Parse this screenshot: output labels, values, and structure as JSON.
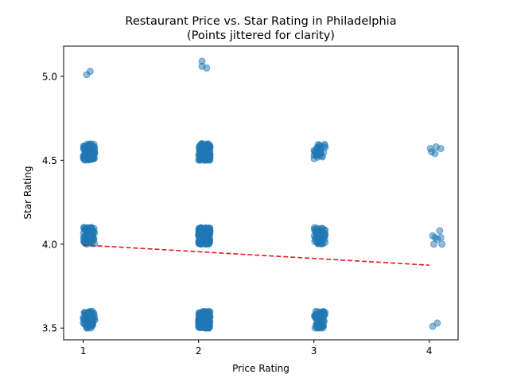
{
  "chart_data": {
    "type": "scatter",
    "title": "Restaurant Price vs. Star Rating in Philadelphia",
    "subtitle": "(Points jittered for clarity)",
    "xlabel": "Price Rating",
    "ylabel": "Star Rating",
    "xlim": [
      0.83,
      4.25
    ],
    "ylim": [
      3.43,
      5.18
    ],
    "xticks": [
      1,
      2,
      3,
      4
    ],
    "xtick_labels": [
      "1",
      "2",
      "3",
      "4"
    ],
    "yticks": [
      3.5,
      4.0,
      4.5,
      5.0
    ],
    "ytick_labels": [
      "3.5",
      "4.0",
      "4.5",
      "5.0"
    ],
    "grid": false,
    "point_color": "#1f77b4",
    "trend_color": "#e31a1c",
    "clusters": [
      {
        "price": 1,
        "stars": 3.5,
        "count": 80
      },
      {
        "price": 1,
        "stars": 4.0,
        "count": 80
      },
      {
        "price": 1,
        "stars": 4.5,
        "count": 80
      },
      {
        "price": 2,
        "stars": 3.5,
        "count": 200
      },
      {
        "price": 2,
        "stars": 4.0,
        "count": 200
      },
      {
        "price": 2,
        "stars": 4.5,
        "count": 150
      },
      {
        "price": 3,
        "stars": 3.5,
        "count": 45
      },
      {
        "price": 3,
        "stars": 4.0,
        "count": 45
      },
      {
        "price": 3,
        "stars": 4.5,
        "count": 25
      }
    ],
    "points": [
      {
        "x": 1.03,
        "y": 5.01
      },
      {
        "x": 1.06,
        "y": 5.03
      },
      {
        "x": 2.03,
        "y": 5.09
      },
      {
        "x": 2.03,
        "y": 5.06
      },
      {
        "x": 2.07,
        "y": 5.05
      },
      {
        "x": 4.01,
        "y": 4.57
      },
      {
        "x": 4.02,
        "y": 4.55
      },
      {
        "x": 4.06,
        "y": 4.58
      },
      {
        "x": 4.05,
        "y": 4.54
      },
      {
        "x": 4.1,
        "y": 4.57
      },
      {
        "x": 4.03,
        "y": 4.05
      },
      {
        "x": 4.05,
        "y": 4.04
      },
      {
        "x": 4.07,
        "y": 4.03
      },
      {
        "x": 4.09,
        "y": 4.08
      },
      {
        "x": 4.1,
        "y": 4.04
      },
      {
        "x": 4.04,
        "y": 4.0
      },
      {
        "x": 4.11,
        "y": 4.0
      },
      {
        "x": 4.03,
        "y": 3.51
      },
      {
        "x": 4.07,
        "y": 3.53
      }
    ],
    "trend_line": {
      "x": [
        1,
        4
      ],
      "y": [
        3.995,
        3.875
      ]
    }
  }
}
